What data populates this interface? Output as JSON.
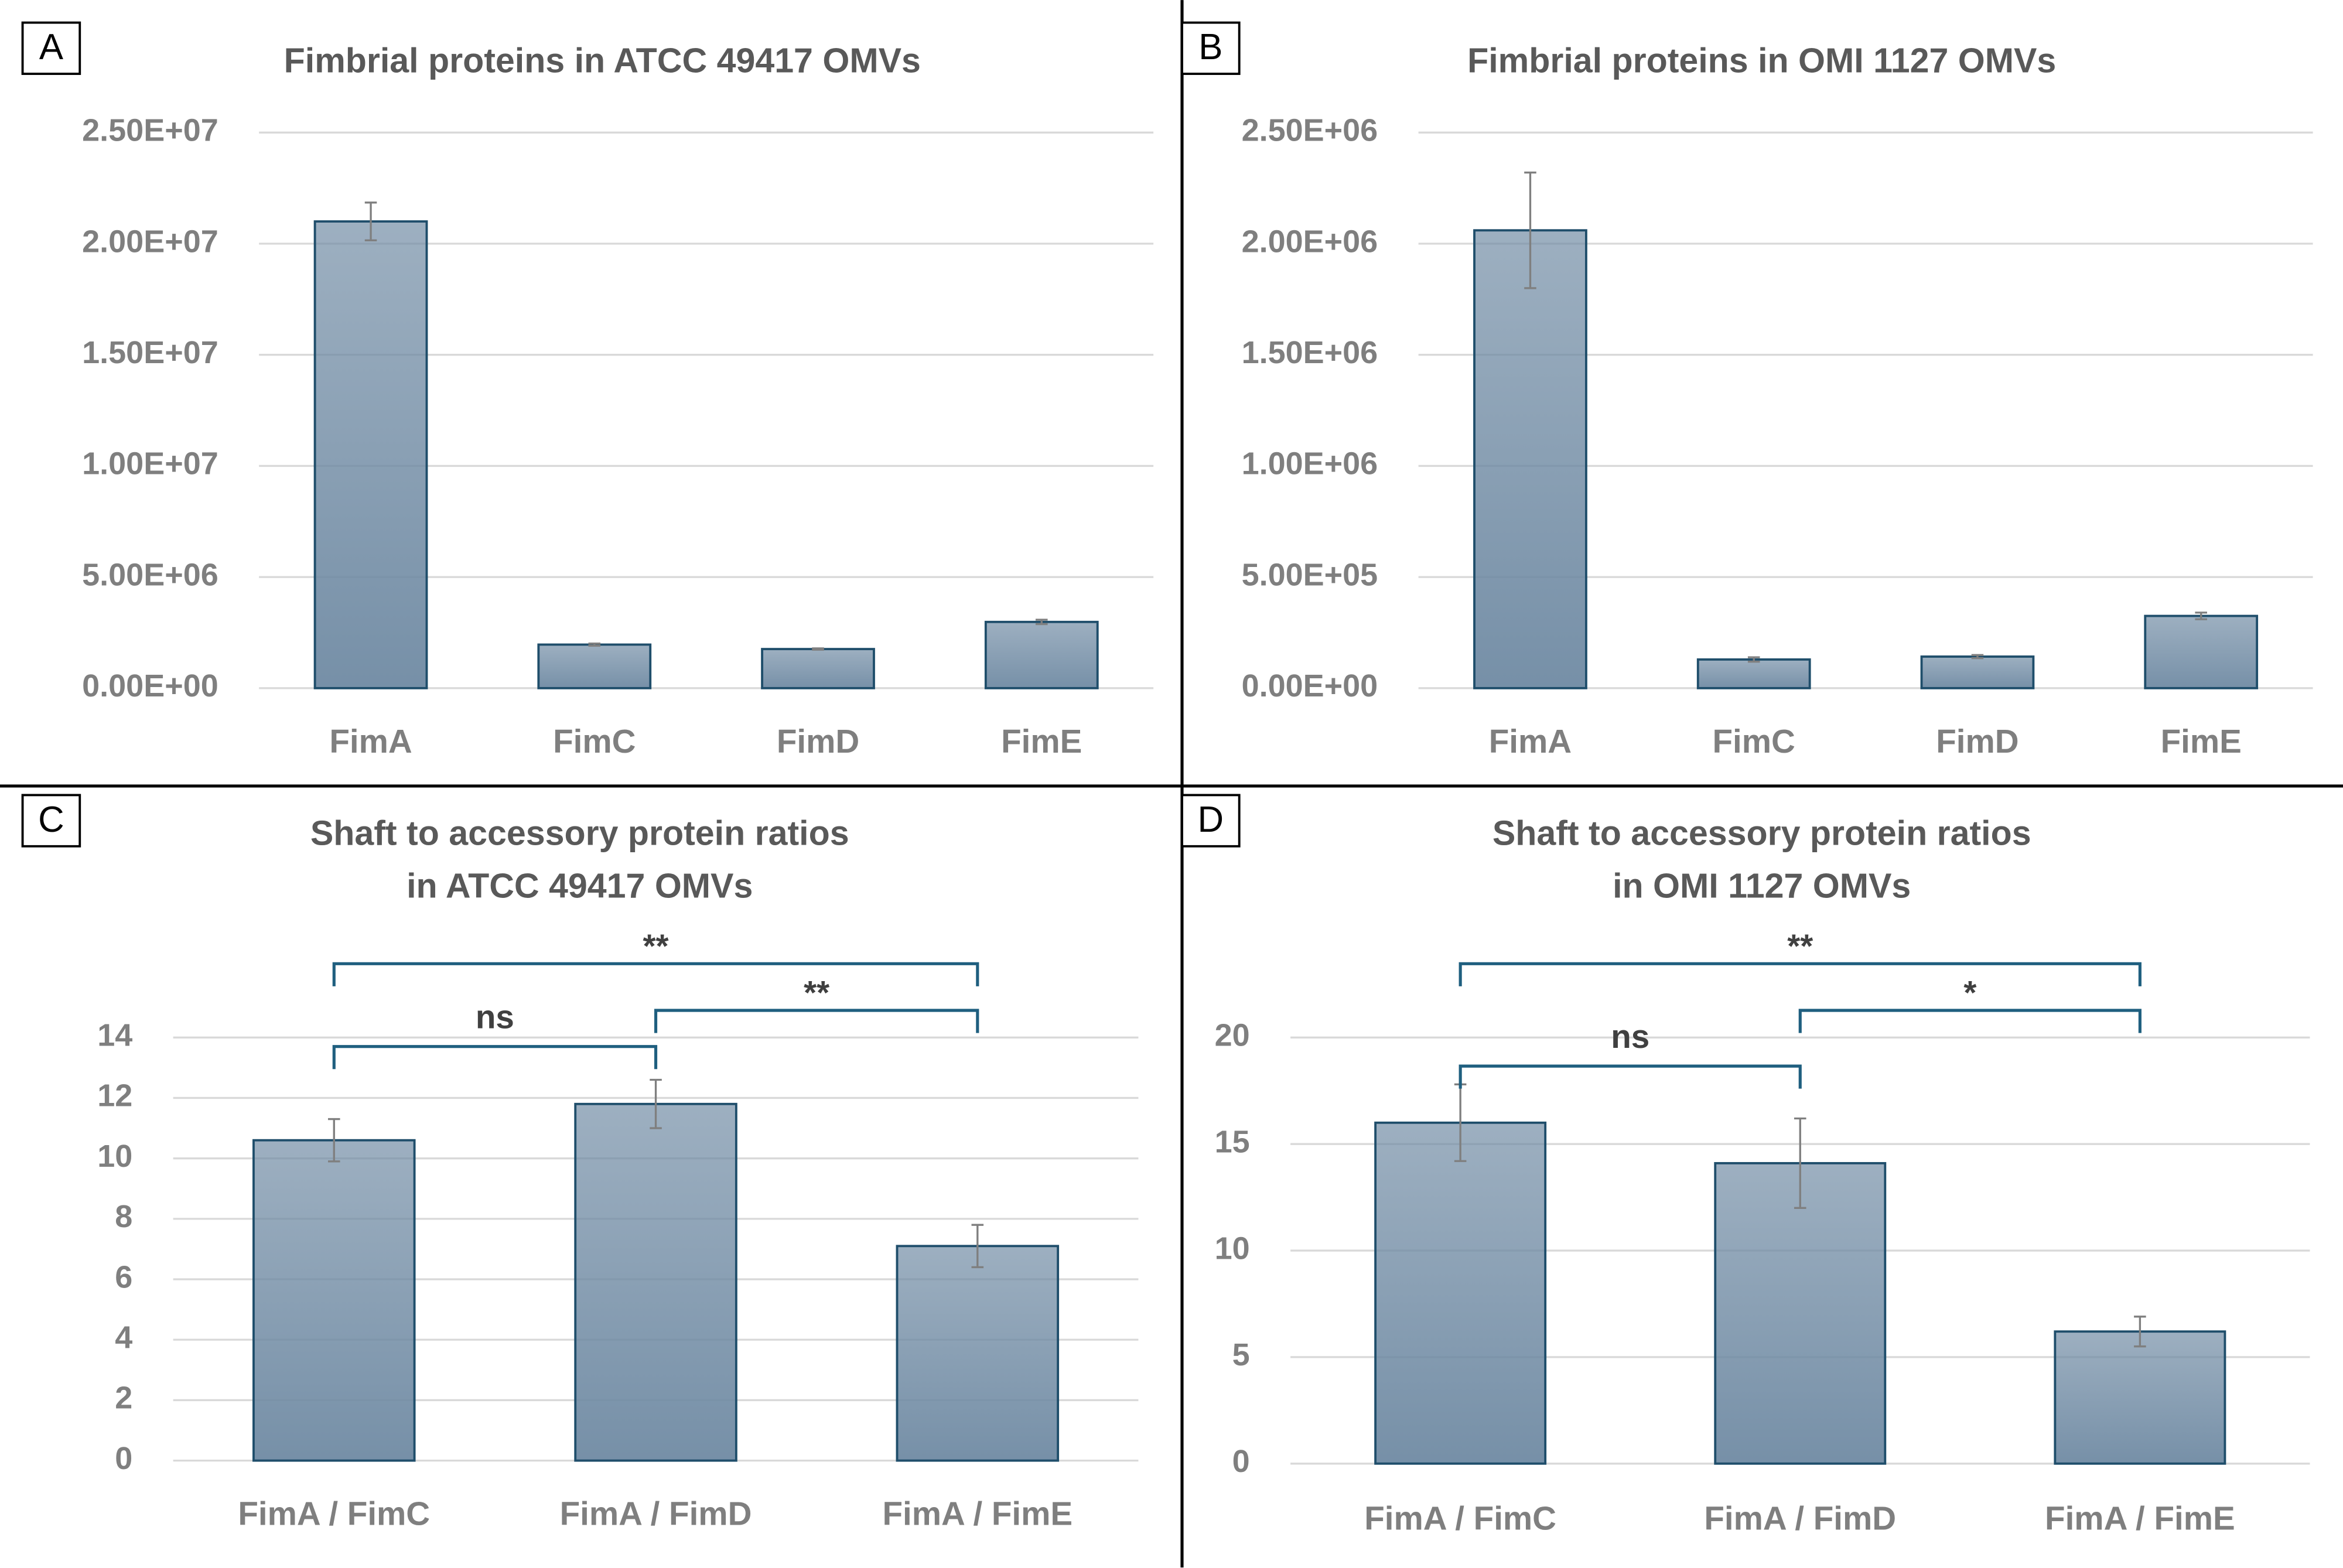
{
  "chart_data": [
    {
      "type": "bar",
      "panel": "A",
      "title": [
        "Fimbrial proteins  in ATCC 49417 OMVs"
      ],
      "categories": [
        "FimA",
        "FimC",
        "FimD",
        "FimE"
      ],
      "values": [
        21000000,
        1960000,
        1760000,
        2980000
      ],
      "errors": [
        850000,
        50000,
        30000,
        100000
      ],
      "color": "#6f8aa3",
      "edge_color": "#1f4e6b",
      "ylim": [
        0,
        25000000
      ],
      "yticks": [
        {
          "value": 0,
          "label": "0.00E+00"
        },
        {
          "value": 5000000,
          "label": "5.00E+06"
        },
        {
          "value": 10000000,
          "label": "1.00E+07"
        },
        {
          "value": 15000000,
          "label": "1.50E+07"
        },
        {
          "value": 20000000,
          "label": "2.00E+07"
        },
        {
          "value": 25000000,
          "label": "2.50E+07"
        }
      ],
      "grid": true,
      "annotations": []
    },
    {
      "type": "bar",
      "panel": "B",
      "title": [
        "Fimbrial proteins  in OMI 1127 OMVs"
      ],
      "categories": [
        "FimA",
        "FimC",
        "FimD",
        "FimE"
      ],
      "values": [
        2060000,
        129000,
        142000,
        325000
      ],
      "errors": [
        260000,
        10000,
        7000,
        15000
      ],
      "color": "#6f8aa3",
      "edge_color": "#1f4e6b",
      "ylim": [
        0,
        2500000
      ],
      "yticks": [
        {
          "value": 0,
          "label": "0.00E+00"
        },
        {
          "value": 500000,
          "label": "5.00E+05"
        },
        {
          "value": 1000000,
          "label": "1.00E+06"
        },
        {
          "value": 1500000,
          "label": "1.50E+06"
        },
        {
          "value": 2000000,
          "label": "2.00E+06"
        },
        {
          "value": 2500000,
          "label": "2.50E+06"
        }
      ],
      "grid": true,
      "annotations": []
    },
    {
      "type": "bar",
      "panel": "C",
      "title": [
        "Shaft to accessory protein ratios",
        "in ATCC 49417 OMVs"
      ],
      "categories": [
        "FimA / FimC",
        "FimA / FimD",
        "FimA / FimE"
      ],
      "values": [
        10.6,
        11.8,
        7.1
      ],
      "errors": [
        0.7,
        0.8,
        0.7
      ],
      "color": "#6f8aa3",
      "edge_color": "#1f4e6b",
      "ylim": [
        0,
        14
      ],
      "yticks": [
        0,
        2,
        4,
        6,
        8,
        10,
        12,
        14
      ],
      "grid": true,
      "annotations": [
        {
          "text": "ns",
          "from": "FimA / FimC",
          "to": "FimA / FimD"
        },
        {
          "text": "**",
          "from": "FimA / FimC",
          "to": "FimA / FimE"
        },
        {
          "text": "**",
          "from": "FimA / FimD",
          "to": "FimA / FimE"
        }
      ]
    },
    {
      "type": "bar",
      "panel": "D",
      "title": [
        "Shaft to accessory protein ratios",
        "in OMI 1127 OMVs"
      ],
      "categories": [
        "FimA / FimC",
        "FimA / FimD",
        "FimA / FimE"
      ],
      "values": [
        16.0,
        14.1,
        6.2
      ],
      "errors": [
        1.8,
        2.1,
        0.7
      ],
      "color": "#6f8aa3",
      "edge_color": "#1f4e6b",
      "ylim": [
        0,
        20
      ],
      "yticks": [
        0,
        5,
        10,
        15,
        20
      ],
      "grid": true,
      "annotations": [
        {
          "text": "ns",
          "from": "FimA / FimC",
          "to": "FimA / FimD"
        },
        {
          "text": "**",
          "from": "FimA / FimC",
          "to": "FimA / FimE"
        },
        {
          "text": "*",
          "from": "FimA / FimD",
          "to": "FimA / FimE"
        }
      ]
    }
  ]
}
